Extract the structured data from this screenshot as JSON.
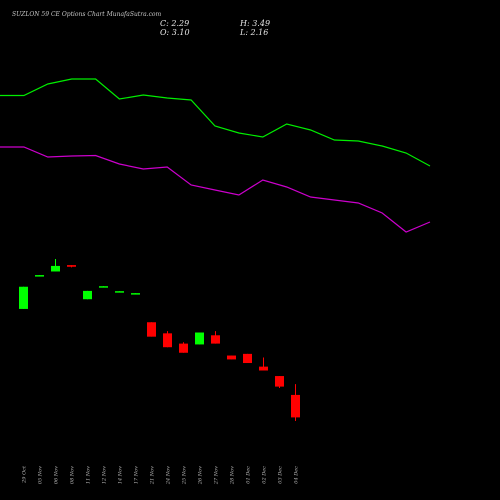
{
  "chart_data": {
    "type": "candlestick",
    "title": "SUZLON 59 CE Options Chart MunafaSutra.com",
    "ohlc": {
      "close": "C: 2.29",
      "open": "O: 3.10",
      "high": "H: 3.49",
      "low": "L: 2.16"
    },
    "colors": {
      "background": "#000000",
      "up": "#00ff00",
      "down": "#ff0000",
      "upper_line": "#00ee00",
      "lower_line": "#cc00cc",
      "text": "#cccccc"
    },
    "ylim": [
      2.16,
      8.0
    ],
    "candles": [
      {
        "date": "29 Oct",
        "open": 6.2,
        "high": 7.0,
        "low": 6.2,
        "close": 7.0
      },
      {
        "date": "05 Nov",
        "open": 7.4,
        "high": 7.42,
        "low": 7.4,
        "close": 7.42
      },
      {
        "date": "06 Nov",
        "open": 7.55,
        "high": 8.0,
        "low": 7.55,
        "close": 7.75
      },
      {
        "date": "08 Nov",
        "open": 7.78,
        "high": 7.78,
        "low": 7.7,
        "close": 7.72
      },
      {
        "date": "11 Nov",
        "open": 6.55,
        "high": 6.85,
        "low": 6.55,
        "close": 6.85
      },
      {
        "date": "12 Nov",
        "open": 7.0,
        "high": 7.02,
        "low": 7.0,
        "close": 7.02
      },
      {
        "date": "14 Nov",
        "open": 6.82,
        "high": 6.84,
        "low": 6.82,
        "close": 6.84
      },
      {
        "date": "17 Nov",
        "open": 6.75,
        "high": 6.77,
        "low": 6.75,
        "close": 6.77
      },
      {
        "date": "21 Nov",
        "open": 5.72,
        "high": 5.72,
        "low": 5.2,
        "close": 5.2
      },
      {
        "date": "24 Nov",
        "open": 5.32,
        "high": 5.4,
        "low": 4.82,
        "close": 4.82
      },
      {
        "date": "25 Nov",
        "open": 4.95,
        "high": 5.0,
        "low": 4.62,
        "close": 4.62
      },
      {
        "date": "26 Nov",
        "open": 4.92,
        "high": 5.35,
        "low": 4.92,
        "close": 5.35
      },
      {
        "date": "27 Nov",
        "open": 5.25,
        "high": 5.4,
        "low": 4.95,
        "close": 4.95
      },
      {
        "date": "28 Nov",
        "open": 4.52,
        "high": 4.52,
        "low": 4.38,
        "close": 4.38
      },
      {
        "date": "01 Dec",
        "open": 4.58,
        "high": 4.58,
        "low": 4.25,
        "close": 4.25
      },
      {
        "date": "02 Dec",
        "open": 4.12,
        "high": 4.45,
        "low": 3.98,
        "close": 3.98
      },
      {
        "date": "03 Dec",
        "open": 3.78,
        "high": 3.78,
        "low": 3.35,
        "close": 3.4
      },
      {
        "date": "04 Dec",
        "open": 3.1,
        "high": 3.49,
        "low": 2.16,
        "close": 2.29
      }
    ],
    "upper_line": [
      95.5,
      95.5,
      84,
      79,
      79,
      99,
      95,
      98,
      100,
      126,
      133,
      137,
      124,
      130,
      140,
      141,
      146,
      153,
      166
    ],
    "lower_line": [
      147,
      147,
      157,
      156,
      155.5,
      164,
      169,
      167,
      185,
      190,
      195,
      180,
      187,
      197,
      200,
      203,
      213,
      232,
      222
    ]
  }
}
